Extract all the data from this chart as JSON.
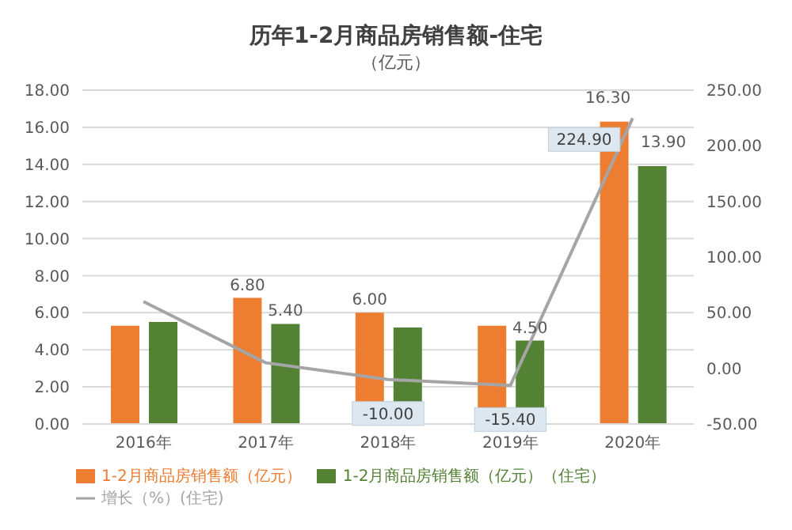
{
  "chart_data": {
    "type": "bar",
    "title": "历年1-2月商品房销售额-住宅",
    "subtitle": "（亿元）",
    "categories": [
      "2016年",
      "2017年",
      "2018年",
      "2019年",
      "2020年"
    ],
    "series": [
      {
        "name": "1-2月商品房销售额（亿元）",
        "color": "#ed7d31",
        "values": [
          5.3,
          6.8,
          6.0,
          5.3,
          16.3
        ],
        "value_labels": [
          null,
          "6.80",
          "6.00",
          null,
          "16.30"
        ]
      },
      {
        "name": "1-2月商品房销售额（亿元）（住宅）",
        "color": "#548235",
        "values": [
          5.5,
          5.4,
          5.2,
          4.5,
          13.9
        ],
        "value_labels": [
          null,
          "5.40",
          null,
          "4.50",
          "13.90"
        ]
      },
      {
        "name": "增长（%）(住宅)",
        "type": "line",
        "axis": "y2",
        "color": "#a5a5a5",
        "values": [
          60,
          5,
          -10,
          -15.4,
          224.9
        ],
        "value_labels": [
          null,
          null,
          "-10.00",
          "-15.40",
          "224.90"
        ]
      }
    ],
    "ylim": [
      0,
      18
    ],
    "yticks": [
      {
        "value": 0,
        "label": "0.00"
      },
      {
        "value": 2,
        "label": "2.00"
      },
      {
        "value": 4,
        "label": "4.00"
      },
      {
        "value": 6,
        "label": "6.00"
      },
      {
        "value": 8,
        "label": "8.00"
      },
      {
        "value": 10,
        "label": "10.00"
      },
      {
        "value": 12,
        "label": "12.00"
      },
      {
        "value": 14,
        "label": "14.00"
      },
      {
        "value": 16,
        "label": "16.00"
      },
      {
        "value": 18,
        "label": "18.00"
      }
    ],
    "y2lim": [
      -50,
      250
    ],
    "y2ticks": [
      {
        "value": -50,
        "label": "-50.00"
      },
      {
        "value": 0,
        "label": "0.00"
      },
      {
        "value": 50,
        "label": "50.00"
      },
      {
        "value": 100,
        "label": "100.00"
      },
      {
        "value": 150,
        "label": "150.00"
      },
      {
        "value": 200,
        "label": "200.00"
      },
      {
        "value": 250,
        "label": "250.00"
      }
    ],
    "grid": "y",
    "legend": "bottom",
    "marker": "none"
  }
}
